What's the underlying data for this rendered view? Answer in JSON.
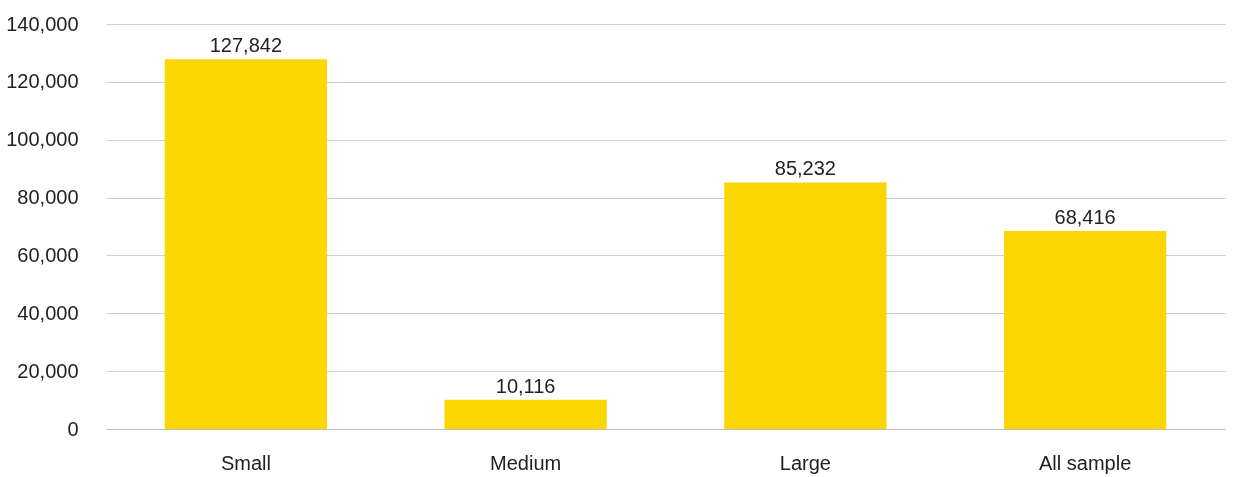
{
  "chart_data": {
    "type": "bar",
    "categories": [
      "Small",
      "Medium",
      "Large",
      "All sample"
    ],
    "values": [
      127842,
      10116,
      85232,
      68416
    ],
    "color": "#fcd505",
    "ylim": [
      0,
      140000
    ],
    "yticks": [
      {
        "value": 0,
        "label": "0"
      },
      {
        "value": 20000,
        "label": "20,000"
      },
      {
        "value": 40000,
        "label": "40,000"
      },
      {
        "value": 60000,
        "label": "60,000"
      },
      {
        "value": 80000,
        "label": "80,000"
      },
      {
        "value": 100000,
        "label": "100,000"
      },
      {
        "value": 120000,
        "label": "120,000"
      },
      {
        "value": 140000,
        "label": "140,000"
      }
    ],
    "grid": "y",
    "value_labels": [
      "127,842",
      "10,116",
      "85,232",
      "68,416"
    ]
  }
}
